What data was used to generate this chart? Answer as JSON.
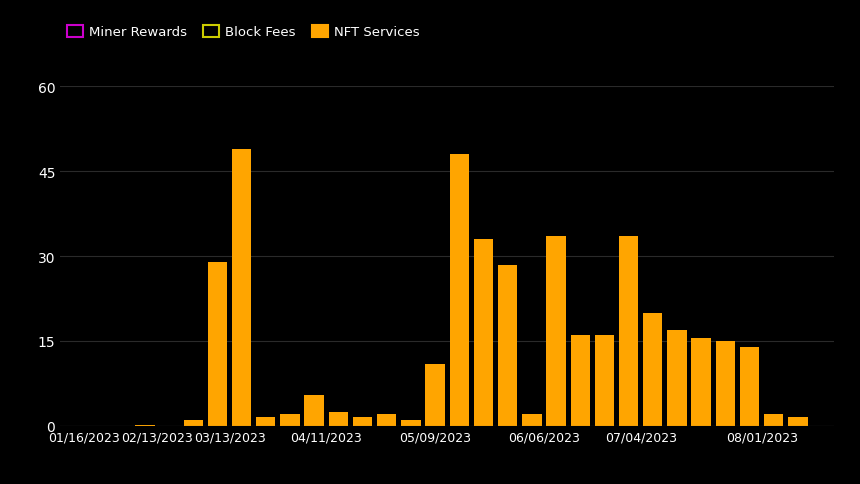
{
  "background_color": "#000000",
  "bar_color": "#FFA500",
  "legend_labels": [
    "Miner Rewards",
    "Block Fees",
    "NFT Services"
  ],
  "legend_colors": [
    "#CC00CC",
    "#CCCC00",
    "#FFA500"
  ],
  "x_labels": [
    "01/16/2023",
    "02/13/2023",
    "03/13/2023",
    "04/11/2023",
    "05/09/2023",
    "06/06/2023",
    "07/04/2023",
    "08/01/2023"
  ],
  "grid_color": "#2a2a2a",
  "text_color": "#ffffff",
  "ylim": [
    0,
    60
  ],
  "yticks": [
    0,
    15,
    30,
    45,
    60
  ],
  "bar_heights": [
    0.05,
    0.05,
    0.15,
    1.0,
    29.0,
    49.0,
    1.5,
    2.0,
    5.5,
    2.5,
    1.5,
    2.0,
    1.0,
    11.0,
    48.0,
    33.0,
    28.5,
    2.0,
    33.5,
    16.0,
    16.0,
    33.5,
    20.0,
    17.0,
    15.5,
    15.0,
    14.0,
    2.0,
    1.5
  ],
  "bar_x": [
    1,
    2,
    4,
    6,
    7,
    8,
    9,
    10,
    11,
    12,
    13,
    14,
    15,
    16,
    17,
    18,
    19,
    20,
    21,
    22,
    23,
    24,
    25,
    26,
    27,
    28,
    29,
    30,
    31
  ],
  "xtick_x": [
    1.5,
    4.5,
    7.5,
    11.5,
    16.0,
    20.5,
    24.5,
    29.5
  ],
  "xlim": [
    0.5,
    32.5
  ],
  "bar_width": 0.8
}
